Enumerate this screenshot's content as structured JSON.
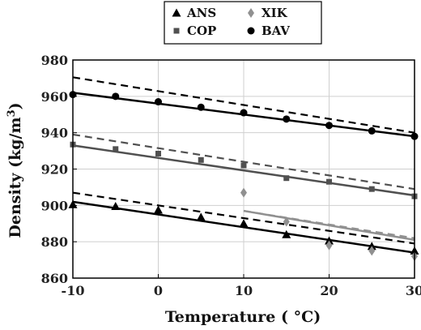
{
  "chart_data": {
    "type": "line",
    "xlabel": "Temperature ( °C)",
    "ylabel_text": "Density (kg/m",
    "ylabel_sup": "3",
    "ylabel_close": ")",
    "xlim": [
      -10,
      30
    ],
    "ylim": [
      860,
      980
    ],
    "xticks": [
      -10,
      0,
      10,
      20,
      30
    ],
    "yticks": [
      860,
      880,
      900,
      920,
      940,
      960,
      980
    ],
    "grid": true,
    "legend_position": "top",
    "series": [
      {
        "name": "ANS",
        "marker": "triangle",
        "color": "#000000",
        "x": [
          -10,
          -5,
          0,
          5,
          10,
          15,
          20,
          25,
          30
        ],
        "y": [
          900.5,
          899.5,
          897.5,
          893.5,
          890,
          884,
          880.5,
          877.5,
          875
        ],
        "fit": {
          "x": [
            -10,
            30
          ],
          "y": [
            902,
            874
          ]
        },
        "dashed": {
          "x": [
            -10,
            30
          ],
          "y": [
            907,
            879
          ]
        }
      },
      {
        "name": "XIK",
        "marker": "diamond",
        "color": "#909090",
        "x": [
          10,
          15,
          20,
          25,
          30
        ],
        "y": [
          907,
          891,
          878,
          875,
          872
        ],
        "fit": {
          "x": [
            10,
            30
          ],
          "y": [
            897,
            881
          ]
        },
        "dashed": {
          "x": [
            10,
            30
          ],
          "y": [
            897,
            882
          ]
        }
      },
      {
        "name": "COP",
        "marker": "square",
        "color": "#505050",
        "x": [
          -10,
          -5,
          0,
          5,
          10,
          15,
          20,
          25,
          30
        ],
        "y": [
          933.5,
          931,
          928.5,
          925,
          922,
          915,
          913,
          909,
          905
        ],
        "fit": {
          "x": [
            -10,
            30
          ],
          "y": [
            933,
            905.5
          ]
        },
        "dashed": {
          "x": [
            -10,
            30
          ],
          "y": [
            939,
            909
          ]
        }
      },
      {
        "name": "BAV",
        "marker": "circle",
        "color": "#000000",
        "x": [
          -10,
          -5,
          0,
          5,
          10,
          15,
          20,
          25,
          30
        ],
        "y": [
          961,
          960,
          957,
          954,
          951,
          947.5,
          944,
          941,
          938
        ],
        "fit": {
          "x": [
            -10,
            30
          ],
          "y": [
            962,
            938
          ]
        },
        "dashed": {
          "x": [
            -10,
            30
          ],
          "y": [
            970.5,
            940
          ]
        }
      }
    ]
  }
}
